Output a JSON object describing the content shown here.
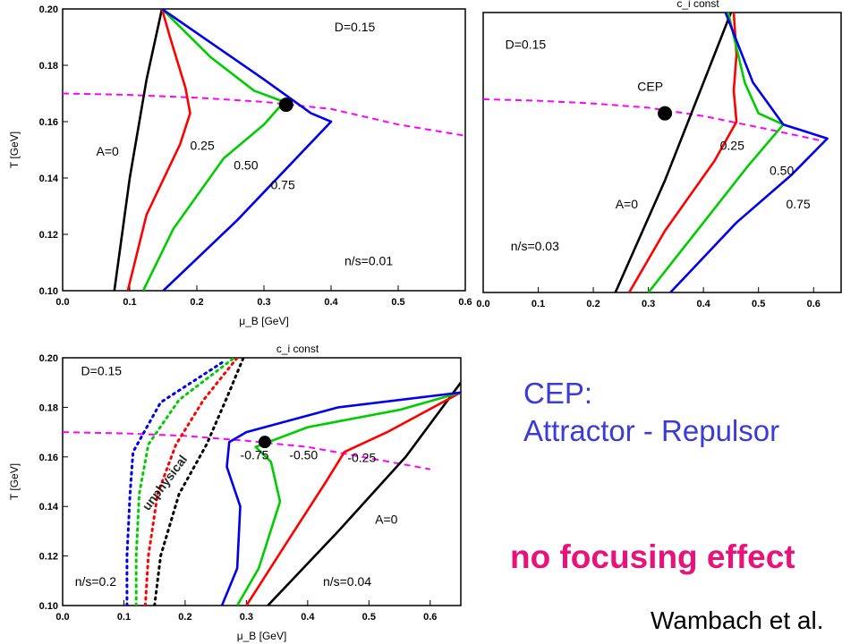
{
  "chart_data": [
    {
      "type": "line",
      "title": "",
      "xlabel": "μ_B [GeV]",
      "ylabel": "T [GeV]",
      "xlim": [
        0.0,
        0.6
      ],
      "ylim": [
        0.1,
        0.2
      ],
      "xticks": [
        "0.0",
        "0.1",
        "0.2",
        "0.3",
        "0.4",
        "0.5",
        "0.6"
      ],
      "yticks": [
        "0.10",
        "0.12",
        "0.14",
        "0.16",
        "0.18",
        "0.20"
      ],
      "annotations": [
        "D=0.15",
        "n/s=0.01",
        "A=0",
        "0.25",
        "0.50",
        "0.75"
      ],
      "cep": [
        0.333,
        0.166
      ],
      "crossover": {
        "name": "crossover",
        "color": "#ff00ff",
        "style": "dashed",
        "points": [
          [
            0.0,
            0.17
          ],
          [
            0.1,
            0.1695
          ],
          [
            0.2,
            0.1685
          ],
          [
            0.3,
            0.167
          ],
          [
            0.4,
            0.1645
          ],
          [
            0.5,
            0.159
          ],
          [
            0.6,
            0.155
          ]
        ]
      },
      "series": [
        {
          "name": "A=0",
          "color": "#000000",
          "style": "solid",
          "points": [
            [
              0.077,
              0.1
            ],
            [
              0.1,
              0.14
            ],
            [
              0.125,
              0.175
            ],
            [
              0.148,
              0.2
            ]
          ]
        },
        {
          "name": "0.25",
          "color": "#ff0000",
          "style": "solid",
          "points": [
            [
              0.097,
              0.1
            ],
            [
              0.125,
              0.127
            ],
            [
              0.175,
              0.152
            ],
            [
              0.19,
              0.163
            ],
            [
              0.183,
              0.172
            ],
            [
              0.16,
              0.19
            ],
            [
              0.148,
              0.2
            ]
          ]
        },
        {
          "name": "0.50",
          "color": "#00cc00",
          "style": "solid",
          "points": [
            [
              0.12,
              0.1
            ],
            [
              0.165,
              0.122
            ],
            [
              0.24,
              0.147
            ],
            [
              0.3,
              0.159
            ],
            [
              0.33,
              0.167
            ],
            [
              0.285,
              0.171
            ],
            [
              0.22,
              0.183
            ],
            [
              0.148,
              0.2
            ]
          ]
        },
        {
          "name": "0.75",
          "color": "#0000ee",
          "style": "solid",
          "points": [
            [
              0.15,
              0.1
            ],
            [
              0.26,
              0.125
            ],
            [
              0.34,
              0.145
            ],
            [
              0.4,
              0.16
            ],
            [
              0.37,
              0.163
            ],
            [
              0.3,
              0.175
            ],
            [
              0.148,
              0.2
            ]
          ]
        }
      ]
    },
    {
      "type": "line",
      "title": "c_i const",
      "xlabel": "",
      "ylabel": "",
      "xlim": [
        0.0,
        0.65
      ],
      "ylim": [
        0.1,
        0.2
      ],
      "xticks": [
        "0.0",
        "0.1",
        "0.2",
        "0.3",
        "0.4",
        "0.5",
        "0.6"
      ],
      "yticks": [],
      "annotations": [
        "D=0.15",
        "CEP",
        "n/s=0.03",
        "A=0",
        "0.25",
        "0.50",
        "0.75"
      ],
      "cep": [
        0.33,
        0.164
      ],
      "crossover": {
        "name": "crossover",
        "color": "#ff00ff",
        "style": "dashed",
        "points": [
          [
            0.0,
            0.169
          ],
          [
            0.1,
            0.1685
          ],
          [
            0.2,
            0.1675
          ],
          [
            0.3,
            0.166
          ],
          [
            0.4,
            0.163
          ],
          [
            0.5,
            0.159
          ],
          [
            0.62,
            0.154
          ]
        ]
      },
      "series": [
        {
          "name": "A=0",
          "color": "#000000",
          "style": "solid",
          "points": [
            [
              0.24,
              0.1
            ],
            [
              0.33,
              0.14
            ],
            [
              0.4,
              0.175
            ],
            [
              0.45,
              0.2
            ]
          ]
        },
        {
          "name": "0.25",
          "color": "#ff0000",
          "style": "solid",
          "points": [
            [
              0.265,
              0.1
            ],
            [
              0.33,
              0.122
            ],
            [
              0.42,
              0.147
            ],
            [
              0.46,
              0.161
            ],
            [
              0.455,
              0.172
            ],
            [
              0.46,
              0.185
            ],
            [
              0.455,
              0.2
            ]
          ]
        },
        {
          "name": "0.50",
          "color": "#00cc00",
          "style": "solid",
          "points": [
            [
              0.3,
              0.1
            ],
            [
              0.4,
              0.125
            ],
            [
              0.48,
              0.145
            ],
            [
              0.545,
              0.16
            ],
            [
              0.5,
              0.164
            ],
            [
              0.475,
              0.175
            ],
            [
              0.445,
              0.2
            ]
          ]
        },
        {
          "name": "0.75",
          "color": "#0000ee",
          "style": "solid",
          "points": [
            [
              0.34,
              0.1
            ],
            [
              0.46,
              0.125
            ],
            [
              0.56,
              0.142
            ],
            [
              0.625,
              0.155
            ],
            [
              0.545,
              0.16
            ],
            [
              0.49,
              0.175
            ],
            [
              0.44,
              0.2
            ]
          ]
        }
      ]
    },
    {
      "type": "line",
      "title": "c_i const",
      "xlabel": "μ_B [GeV]",
      "ylabel": "T [GeV]",
      "xlim": [
        0.0,
        0.65
      ],
      "ylim": [
        0.1,
        0.2
      ],
      "xticks": [
        "0.0",
        "0.1",
        "0.2",
        "0.3",
        "0.4",
        "0.5",
        "0.6"
      ],
      "yticks": [
        "0.10",
        "0.12",
        "0.14",
        "0.16",
        "0.18",
        "0.20"
      ],
      "annotations": [
        "D=0.15",
        "unphysical",
        "n/s=0.2",
        "n/s=0.04",
        "A=0",
        "-0.25",
        "-0.50",
        "-0.75"
      ],
      "cep": [
        0.33,
        0.166
      ],
      "crossover": {
        "name": "crossover",
        "color": "#ff00ff",
        "style": "dashed",
        "points": [
          [
            0.0,
            0.17
          ],
          [
            0.1,
            0.1695
          ],
          [
            0.2,
            0.1685
          ],
          [
            0.3,
            0.1665
          ],
          [
            0.4,
            0.164
          ],
          [
            0.5,
            0.1595
          ],
          [
            0.6,
            0.155
          ]
        ]
      },
      "series": [
        {
          "name": "A=0",
          "color": "#000000",
          "style": "solid",
          "points": [
            [
              0.335,
              0.1
            ],
            [
              0.45,
              0.13
            ],
            [
              0.56,
              0.16
            ],
            [
              0.65,
              0.19
            ]
          ]
        },
        {
          "name": "-0.25",
          "color": "#ff0000",
          "style": "solid",
          "points": [
            [
              0.3,
              0.1
            ],
            [
              0.37,
              0.127
            ],
            [
              0.43,
              0.15
            ],
            [
              0.46,
              0.162
            ],
            [
              0.53,
              0.17
            ],
            [
              0.65,
              0.186
            ]
          ]
        },
        {
          "name": "-0.50",
          "color": "#00cc00",
          "style": "solid",
          "points": [
            [
              0.285,
              0.1
            ],
            [
              0.32,
              0.115
            ],
            [
              0.355,
              0.142
            ],
            [
              0.34,
              0.158
            ],
            [
              0.315,
              0.164
            ],
            [
              0.4,
              0.172
            ],
            [
              0.55,
              0.179
            ],
            [
              0.65,
              0.186
            ]
          ]
        },
        {
          "name": "-0.75",
          "color": "#0000ee",
          "style": "solid",
          "points": [
            [
              0.26,
              0.1
            ],
            [
              0.285,
              0.115
            ],
            [
              0.29,
              0.14
            ],
            [
              0.268,
              0.156
            ],
            [
              0.272,
              0.166
            ],
            [
              0.3,
              0.17
            ],
            [
              0.45,
              0.18
            ],
            [
              0.65,
              0.186
            ]
          ]
        },
        {
          "name": "",
          "color": "#000000",
          "style": "dotted",
          "points": [
            [
              0.15,
              0.1
            ],
            [
              0.16,
              0.12
            ],
            [
              0.19,
              0.145
            ],
            [
              0.235,
              0.165
            ],
            [
              0.27,
              0.185
            ],
            [
              0.295,
              0.2
            ]
          ]
        },
        {
          "name": "",
          "color": "#ff0000",
          "style": "dotted",
          "points": [
            [
              0.135,
              0.1
            ],
            [
              0.14,
              0.12
            ],
            [
              0.155,
              0.145
            ],
            [
              0.185,
              0.165
            ],
            [
              0.23,
              0.183
            ],
            [
              0.285,
              0.2
            ]
          ]
        },
        {
          "name": "",
          "color": "#00cc00",
          "style": "dotted",
          "points": [
            [
              0.12,
              0.1
            ],
            [
              0.12,
              0.12
            ],
            [
              0.125,
              0.145
            ],
            [
              0.14,
              0.165
            ],
            [
              0.19,
              0.183
            ],
            [
              0.28,
              0.2
            ]
          ]
        },
        {
          "name": "",
          "color": "#0000ee",
          "style": "dotted",
          "points": [
            [
              0.105,
              0.1
            ],
            [
              0.105,
              0.12
            ],
            [
              0.11,
              0.145
            ],
            [
              0.115,
              0.162
            ],
            [
              0.16,
              0.182
            ],
            [
              0.26,
              0.198
            ]
          ]
        }
      ]
    }
  ],
  "side_text": {
    "cep_heading": "CEP:",
    "attractor_repulsor": "Attractor - Repulsor",
    "no_focusing": "no focusing effect",
    "credit": "Wambach et al."
  },
  "colors": {
    "accent_blue": "#3b3bd6",
    "accent_pink": "#e8137a",
    "unphysical": "#7fffd4"
  }
}
